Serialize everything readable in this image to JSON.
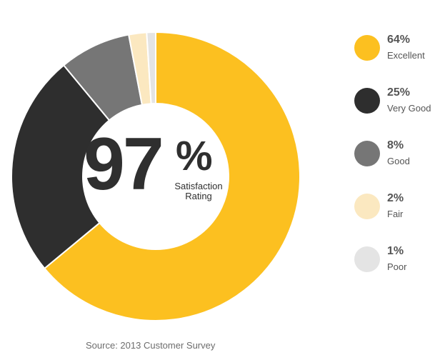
{
  "chart_data": {
    "type": "pie",
    "categories": [
      "Excellent",
      "Very Good",
      "Good",
      "Fair",
      "Poor"
    ],
    "values": [
      64,
      25,
      8,
      2,
      1
    ],
    "percent_labels": [
      "64%",
      "25%",
      "8%",
      "2%",
      "1%"
    ],
    "colors": [
      "#fcc020",
      "#2e2e2e",
      "#767676",
      "#fbe8c0",
      "#e4e4e4"
    ],
    "donut": true,
    "start_angle": "12 o'clock",
    "direction": "clockwise",
    "legend_position": "right",
    "center_value": "97",
    "center_symbol": "%",
    "center_caption": "Satisfaction Rating",
    "source": "Source: 2013 Customer Survey"
  }
}
